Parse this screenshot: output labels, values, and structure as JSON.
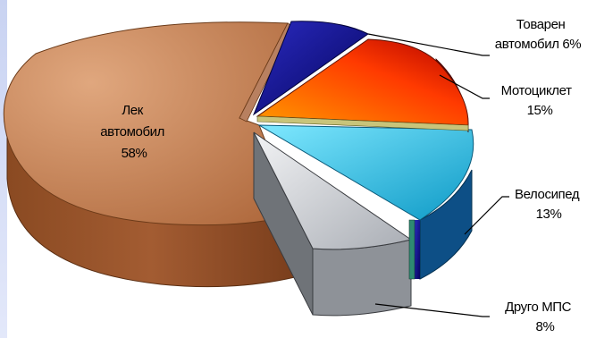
{
  "chart_data": {
    "type": "pie",
    "title": "",
    "labels_on_chart": [
      {
        "lines": [
          "Товарен",
          "автомобил 6%"
        ]
      },
      {
        "lines": [
          "Мотоциклет",
          "15%"
        ]
      },
      {
        "lines": [
          "Велосипед",
          "13%"
        ]
      },
      {
        "lines": [
          "Друго МПС",
          "8%"
        ]
      },
      {
        "lines": [
          "Лек",
          "автомобил",
          "58%"
        ]
      }
    ],
    "slices": [
      {
        "label": "Товарен автомобил",
        "value": 6,
        "color": "#0a0a8c"
      },
      {
        "label": "Мотоциклет",
        "value": 15,
        "color": "#ff7700"
      },
      {
        "label": "Велосипед",
        "value": 13,
        "color": "#29c6ee"
      },
      {
        "label": "Друго МПС",
        "value": 8,
        "color": "#c8cbd0"
      },
      {
        "label": "Лек автомобил",
        "value": 58,
        "color": "#c8895c"
      }
    ],
    "colors": {
      "accent_thin_slice": "#c8c47a",
      "thin_slice_2": "#2e8a72",
      "leader_line": "#000000"
    }
  }
}
